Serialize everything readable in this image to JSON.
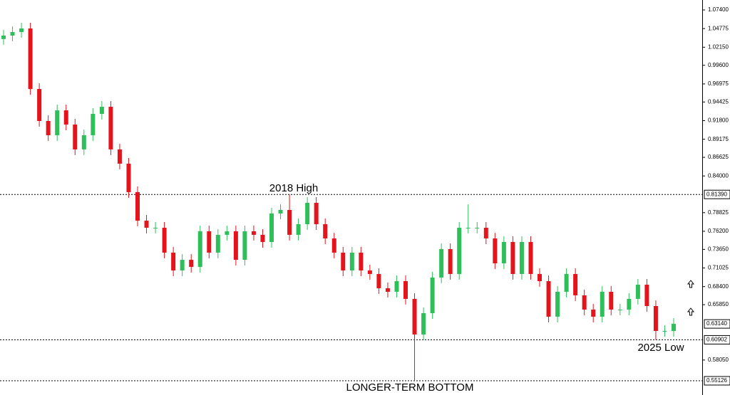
{
  "chart_data": {
    "type": "candlestick",
    "up_color": "#2fbf5a",
    "down_color": "#e5131b",
    "ylim": [
      0.55126,
      1.074
    ],
    "yticks": [
      {
        "value": 1.074,
        "label": "1.07400"
      },
      {
        "value": 1.04775,
        "label": "1.04775"
      },
      {
        "value": 1.0215,
        "label": "1.02150"
      },
      {
        "value": 0.996,
        "label": "0.99600"
      },
      {
        "value": 0.96975,
        "label": "0.96975"
      },
      {
        "value": 0.94425,
        "label": "0.94425"
      },
      {
        "value": 0.918,
        "label": "0.91800"
      },
      {
        "value": 0.89175,
        "label": "0.89175"
      },
      {
        "value": 0.86625,
        "label": "0.86625"
      },
      {
        "value": 0.84,
        "label": "0.84000"
      },
      {
        "value": 0.78825,
        "label": "0.78825"
      },
      {
        "value": 0.762,
        "label": "0.76200"
      },
      {
        "value": 0.7365,
        "label": "0.73650"
      },
      {
        "value": 0.71025,
        "label": "0.71025"
      },
      {
        "value": 0.684,
        "label": "0.68400"
      },
      {
        "value": 0.6585,
        "label": "0.65850"
      },
      {
        "value": 0.5805,
        "label": "0.58050"
      }
    ],
    "levels": [
      {
        "value": 0.8139,
        "label": "0.81390"
      },
      {
        "value": 0.60902,
        "label": "0.60902"
      },
      {
        "value": 0.55126,
        "label": "0.55126"
      }
    ],
    "last_price": {
      "value": 0.6314,
      "label": "0.63140"
    },
    "annotations": [
      "2018 High",
      "2025 Low",
      "LONGER-TERM BOTTOM"
    ],
    "open": [
      1.033,
      1.0379,
      1.0429,
      1.0479,
      0.9626,
      0.9175,
      0.8974,
      0.9325,
      0.9125,
      0.8774,
      0.8974,
      0.9275,
      0.9375,
      0.8774,
      0.8573,
      0.8172,
      0.777,
      0.767,
      0.767,
      0.7319,
      0.7068,
      0.7218,
      0.7118,
      0.762,
      0.7319,
      0.757,
      0.762,
      0.7218,
      0.762,
      0.757,
      0.7469,
      0.7871,
      0.7921,
      0.757,
      0.772,
      0.8021,
      0.772,
      0.7519,
      0.7319,
      0.7068,
      0.7319,
      0.7068,
      0.7018,
      0.6817,
      0.6767,
      0.6917,
      0.6667,
      0.6165,
      0.6466,
      0.6968,
      0.7369,
      0.7018,
      0.767,
      0.767,
      0.767,
      0.7519,
      0.7168,
      0.7469,
      0.7018,
      0.7469,
      0.7018,
      0.6917,
      0.6416,
      0.6767,
      0.7018,
      0.6717,
      0.6516,
      0.6416,
      0.6767,
      0.6516,
      0.6516,
      0.6667,
      0.6867,
      0.6566,
      0.6215,
      0.6215
    ],
    "high": [
      1.0459,
      1.0509,
      1.0559,
      1.0559,
      0.9706,
      0.9255,
      0.9405,
      0.9405,
      0.9205,
      0.9054,
      0.9355,
      0.9455,
      0.9455,
      0.8854,
      0.8653,
      0.8252,
      0.785,
      0.775,
      0.775,
      0.7399,
      0.7298,
      0.7298,
      0.77,
      0.77,
      0.765,
      0.77,
      0.77,
      0.77,
      0.77,
      0.765,
      0.7951,
      0.8001,
      0.8139,
      0.78,
      0.8101,
      0.8101,
      0.78,
      0.7599,
      0.7399,
      0.7399,
      0.7399,
      0.7148,
      0.7098,
      0.6897,
      0.6997,
      0.6997,
      0.6747,
      0.6546,
      0.7048,
      0.7449,
      0.7449,
      0.775,
      0.8,
      0.775,
      0.775,
      0.7599,
      0.7549,
      0.7549,
      0.7549,
      0.7549,
      0.7098,
      0.6997,
      0.6847,
      0.7098,
      0.7098,
      0.6797,
      0.6596,
      0.6847,
      0.6847,
      0.6596,
      0.6747,
      0.6947,
      0.6947,
      0.6646,
      0.6295,
      0.6395
    ],
    "low": [
      1.025,
      1.0299,
      1.0349,
      0.9546,
      0.9095,
      0.8894,
      0.8894,
      0.9045,
      0.8694,
      0.8694,
      0.8894,
      0.9195,
      0.8694,
      0.8493,
      0.8092,
      0.769,
      0.759,
      0.759,
      0.7239,
      0.6988,
      0.6988,
      0.7038,
      0.7038,
      0.7239,
      0.7239,
      0.749,
      0.7138,
      0.7138,
      0.749,
      0.7389,
      0.7389,
      0.7791,
      0.749,
      0.749,
      0.764,
      0.764,
      0.7439,
      0.7239,
      0.6988,
      0.6988,
      0.6988,
      0.6938,
      0.6737,
      0.6687,
      0.6687,
      0.6587,
      0.5513,
      0.6085,
      0.6386,
      0.6888,
      0.6938,
      0.6938,
      0.759,
      0.759,
      0.7439,
      0.7088,
      0.7088,
      0.6938,
      0.6938,
      0.6938,
      0.6837,
      0.6336,
      0.6336,
      0.6687,
      0.6637,
      0.6436,
      0.6336,
      0.6336,
      0.6436,
      0.6436,
      0.6436,
      0.6587,
      0.6486,
      0.609,
      0.6135,
      0.6135
    ],
    "close": [
      1.0379,
      1.0429,
      1.0479,
      0.9626,
      0.9175,
      0.8974,
      0.9325,
      0.9125,
      0.8774,
      0.8974,
      0.9275,
      0.9375,
      0.8774,
      0.8573,
      0.8172,
      0.777,
      0.767,
      0.767,
      0.7319,
      0.7068,
      0.7218,
      0.7118,
      0.762,
      0.7319,
      0.757,
      0.762,
      0.7218,
      0.762,
      0.757,
      0.7469,
      0.7871,
      0.7921,
      0.757,
      0.772,
      0.8021,
      0.772,
      0.7519,
      0.7319,
      0.7068,
      0.7319,
      0.7068,
      0.7018,
      0.6817,
      0.6767,
      0.6917,
      0.6667,
      0.6165,
      0.6466,
      0.6968,
      0.7369,
      0.7018,
      0.767,
      0.767,
      0.767,
      0.7519,
      0.7168,
      0.7469,
      0.7018,
      0.7469,
      0.7018,
      0.6917,
      0.6416,
      0.6767,
      0.7018,
      0.6717,
      0.6516,
      0.6416,
      0.6767,
      0.6516,
      0.6516,
      0.6667,
      0.6867,
      0.6566,
      0.6215,
      0.6215,
      0.6315
    ]
  }
}
